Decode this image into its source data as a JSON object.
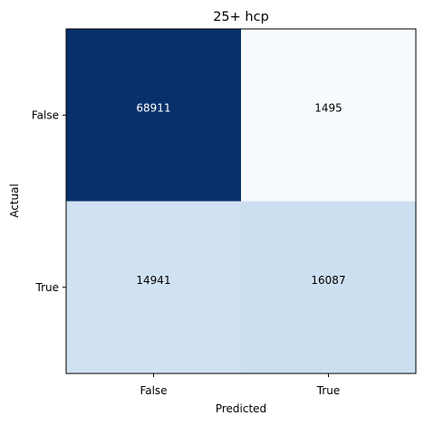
{
  "chart_data": {
    "type": "heatmap",
    "title": "25+ hcp",
    "xlabel": "Predicted",
    "ylabel": "Actual",
    "x_categories": [
      "False",
      "True"
    ],
    "y_categories": [
      "False",
      "True"
    ],
    "values": [
      [
        68911,
        1495
      ],
      [
        14941,
        16087
      ]
    ],
    "colormap": "Blues",
    "grid": false,
    "legend": "none"
  }
}
